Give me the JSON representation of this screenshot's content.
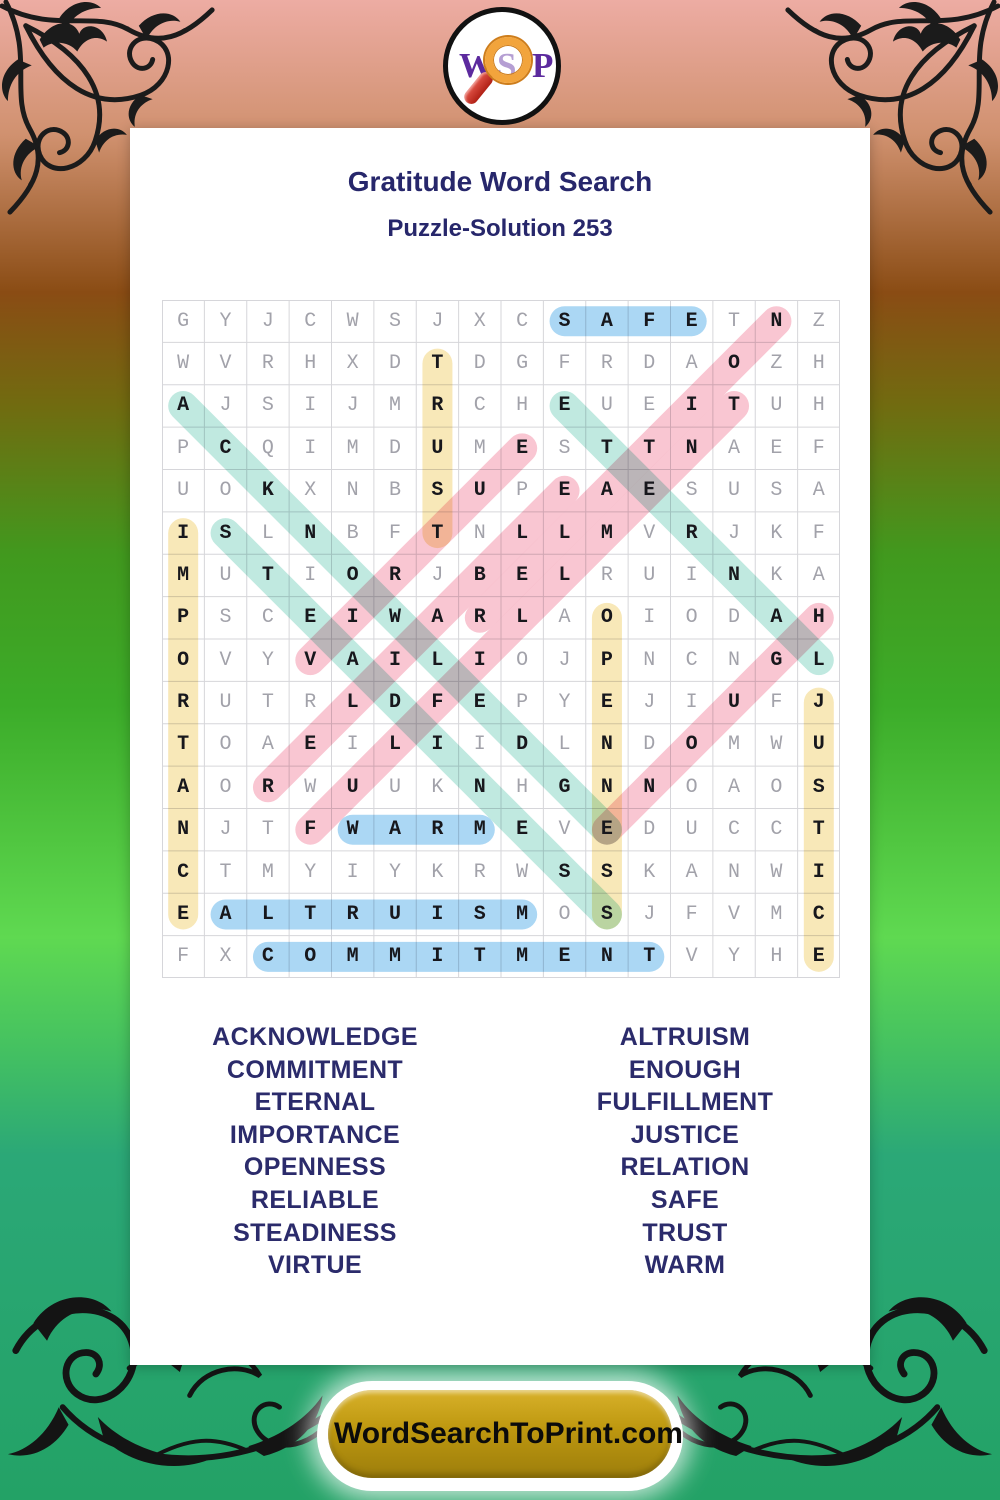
{
  "header": {
    "title": "Gratitude Word Search",
    "subtitle": "Puzzle-Solution 253"
  },
  "logo": {
    "left": "W",
    "center": "S",
    "right": "P"
  },
  "grid": {
    "rows": 16,
    "cols": 16,
    "letters": [
      "GYJCWSJXCSAFETNZ",
      "WVRHXDTDGFRDAOZH",
      "AJSIJMRCHEUEITUH",
      "PCQIMDUMESTTNAEF",
      "UOKXNBSUPEAESUSA",
      "ISLNBFTNLLMVRJKF",
      "MUTIORJBELRUINKA",
      "PSCEIWARLAOIODAH",
      "OVYVAILIOJPNCNGL",
      "RUTRLDFEPYEJIUFJ",
      "TOAEILIIDLNDOMWU",
      "AORWUUKNHGNNOAOS",
      "NJTFWARMEVEDUCCT",
      "CTMYIYKRWSSKANWI",
      "EALTRUISMOSJFVMC",
      "FXCOMMITMENTVYHE"
    ],
    "palette": {
      "blue": "#abd7f4",
      "yellow": "#f8e8b8",
      "teal": "#c0e9e0",
      "pink": "#f9c6d2"
    },
    "solutions": [
      {
        "word": "TRUST",
        "start": [
          2,
          7
        ],
        "end": [
          6,
          7
        ],
        "color": "yellow"
      },
      {
        "word": "IMPORTANCE",
        "start": [
          6,
          1
        ],
        "end": [
          15,
          1
        ],
        "color": "yellow"
      },
      {
        "word": "OPENNESS",
        "start": [
          8,
          11
        ],
        "end": [
          15,
          11
        ],
        "color": "yellow"
      },
      {
        "word": "JUSTICE",
        "start": [
          10,
          16
        ],
        "end": [
          16,
          16
        ],
        "color": "yellow"
      },
      {
        "word": "SAFE",
        "start": [
          1,
          10
        ],
        "end": [
          1,
          13
        ],
        "color": "blue"
      },
      {
        "word": "WARM",
        "start": [
          13,
          5
        ],
        "end": [
          13,
          8
        ],
        "color": "blue"
      },
      {
        "word": "ALTRUISM",
        "start": [
          15,
          2
        ],
        "end": [
          15,
          9
        ],
        "color": "blue"
      },
      {
        "word": "COMMITMENT",
        "start": [
          16,
          3
        ],
        "end": [
          16,
          12
        ],
        "color": "blue"
      },
      {
        "word": "ACKNOWLEDGE",
        "start": [
          3,
          1
        ],
        "end": [
          13,
          11
        ],
        "color": "teal"
      },
      {
        "word": "ETERNAL",
        "start": [
          3,
          10
        ],
        "end": [
          9,
          16
        ],
        "color": "teal"
      },
      {
        "word": "STEADINESS",
        "start": [
          6,
          2
        ],
        "end": [
          15,
          11
        ],
        "color": "teal"
      },
      {
        "word": "VIRTUE",
        "start": [
          9,
          4
        ],
        "end": [
          4,
          9
        ],
        "color": "pink"
      },
      {
        "word": "RELIABLE",
        "start": [
          12,
          3
        ],
        "end": [
          5,
          10
        ],
        "color": "pink"
      },
      {
        "word": "RELATION",
        "start": [
          8,
          8
        ],
        "end": [
          1,
          15
        ],
        "color": "pink"
      },
      {
        "word": "FULFILLMENT",
        "start": [
          13,
          4
        ],
        "end": [
          3,
          14
        ],
        "color": "pink"
      },
      {
        "word": "ENOUGH",
        "start": [
          13,
          11
        ],
        "end": [
          8,
          16
        ],
        "color": "pink"
      }
    ]
  },
  "word_list": {
    "left": [
      "ACKNOWLEDGE",
      "COMMITMENT",
      "ETERNAL",
      "IMPORTANCE",
      "OPENNESS",
      "RELIABLE",
      "STEADINESS",
      "VIRTUE"
    ],
    "right": [
      "ALTRUISM",
      "ENOUGH",
      "FULFILLMENT",
      "JUSTICE",
      "RELATION",
      "SAFE",
      "TRUST",
      "WARM"
    ]
  },
  "footer": {
    "site": "WordSearchToPrint.com"
  },
  "colors": {
    "title_navy": "#27276b",
    "word_navy": "#2b2b6b",
    "button_gold": "#bd970f",
    "logo_purple": "#5c2a9e"
  }
}
